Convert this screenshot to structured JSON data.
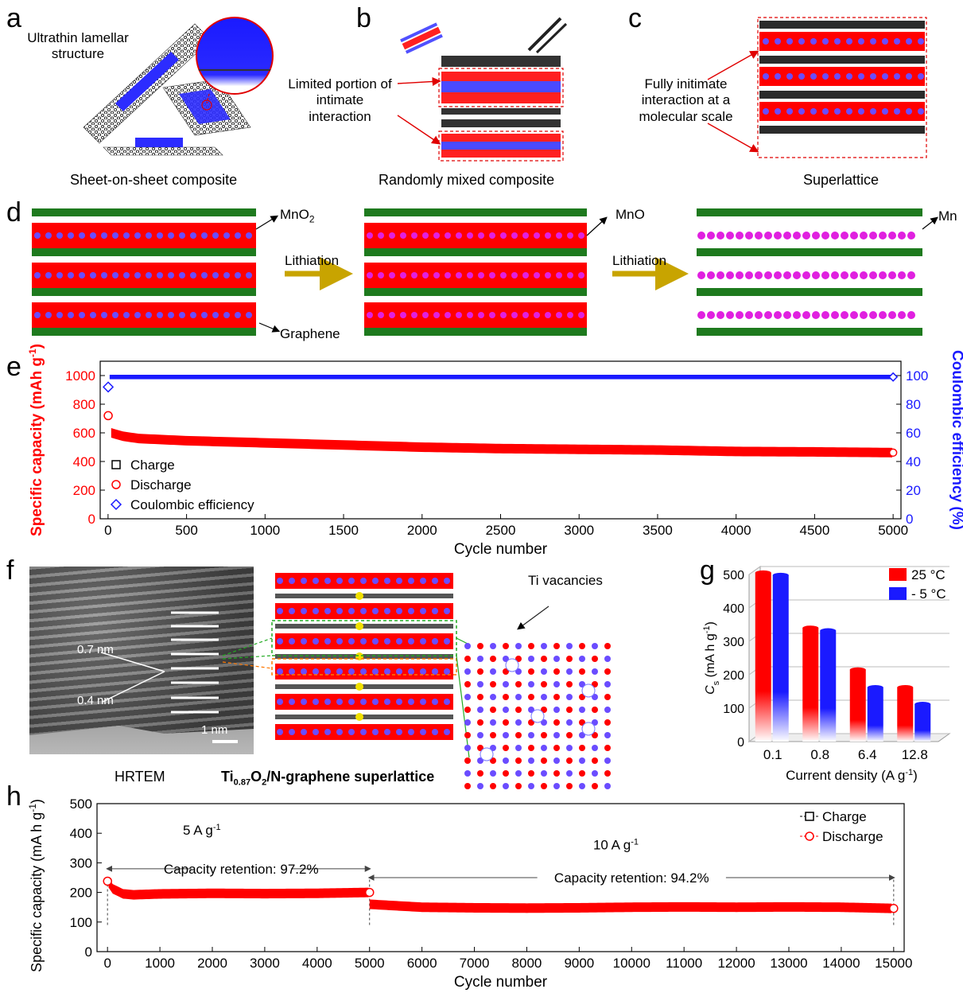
{
  "panels": {
    "a": {
      "letter": "a",
      "label": "Ultrathin lamellar structure",
      "caption": "Sheet-on-sheet composite"
    },
    "b": {
      "letter": "b",
      "label": "Limited portion of intimate interaction",
      "caption": "Randomly mixed composite"
    },
    "c": {
      "letter": "c",
      "label": "Fully initimate interaction at a molecular scale",
      "caption": "Superlattice"
    },
    "d": {
      "letter": "d",
      "mno2": "MnO",
      "mno2_sub": "2",
      "mno": "MnO",
      "mn": "Mn",
      "graphene": "Graphene",
      "arrow1": "Lithiation",
      "arrow2": "Lithiation"
    },
    "e": {
      "letter": "e"
    },
    "f": {
      "letter": "f",
      "d1": "0.7 nm",
      "d2": "0.4 nm",
      "scale": "1 nm",
      "vacancies": "Ti vacancies",
      "caption_left": "HRTEM",
      "caption_right_pre": "Ti",
      "caption_right_sub": "0.87",
      "caption_right_mid": "O",
      "caption_right_sub2": "2",
      "caption_right_post": "/N-graphene superlattice"
    },
    "g": {
      "letter": "g"
    },
    "h": {
      "letter": "h"
    }
  },
  "colors": {
    "red": "#ff0000",
    "blue": "#1a1aff",
    "green": "#1e7a1e",
    "magenta": "#e020e0",
    "purple": "#6a4cff",
    "olive": "#c8a400",
    "graphite": "#333333"
  },
  "chart_data": [
    {
      "id": "e",
      "type": "scatter",
      "xlabel": "Cycle number",
      "ylabel_left": "Specific capacity (mAh g",
      "ylabel_left_sup": "-1",
      "ylabel_left_post": ")",
      "ylabel_right": "Coulombic efficiency (%)",
      "xlim": [
        -50,
        5050
      ],
      "ylim_left": [
        0,
        1100
      ],
      "ylim_right": [
        0,
        110
      ],
      "xticks": [
        0,
        500,
        1000,
        1500,
        2000,
        2500,
        3000,
        3500,
        4000,
        4500,
        5000
      ],
      "yticks_left": [
        0,
        200,
        400,
        600,
        800,
        1000
      ],
      "yticks_right": [
        0,
        20,
        40,
        60,
        80,
        100
      ],
      "legend_position": "bottom-left",
      "legend": [
        {
          "label": "Charge",
          "marker": "square",
          "color": "#000000"
        },
        {
          "label": "Discharge",
          "marker": "circle",
          "color": "#ff0000"
        },
        {
          "label": "Coulombic efficiency",
          "marker": "diamond",
          "color": "#1a1aff"
        }
      ],
      "series": [
        {
          "name": "Charge",
          "axis": "left",
          "x": [
            1,
            5000
          ],
          "y": [
            595,
            462
          ]
        },
        {
          "name": "Discharge",
          "axis": "left",
          "x": [
            1,
            20,
            50,
            100,
            200,
            500,
            1000,
            1500,
            2000,
            2500,
            3000,
            3500,
            4000,
            4500,
            5000
          ],
          "y": [
            720,
            600,
            590,
            575,
            560,
            545,
            530,
            515,
            500,
            490,
            485,
            480,
            470,
            467,
            462
          ]
        },
        {
          "name": "Coulombic efficiency",
          "axis": "right",
          "x": [
            1,
            10,
            500,
            1000,
            2000,
            3000,
            4000,
            5000
          ],
          "y": [
            92,
            98,
            99,
            99,
            99,
            99,
            99,
            99
          ]
        }
      ]
    },
    {
      "id": "g",
      "type": "bar",
      "xlabel": "Current density (A g",
      "xlabel_sup": "-1",
      "xlabel_post": ")",
      "ylabel_pre": "C",
      "ylabel_sub": "s",
      "ylabel_mid": " (mA h g",
      "ylabel_sup": "-1",
      "ylabel_post": ")",
      "categories": [
        "0.1",
        "0.8",
        "6.4",
        "12.8"
      ],
      "ylim": [
        0,
        500
      ],
      "yticks": [
        0,
        100,
        200,
        300,
        400,
        500
      ],
      "legend_position": "top-right",
      "series": [
        {
          "name": "25 °C",
          "color": "#ff0000",
          "values": [
            505,
            340,
            215,
            162
          ]
        },
        {
          "name": "- 5 °C",
          "color": "#1a1aff",
          "values": [
            498,
            332,
            162,
            112
          ]
        }
      ]
    },
    {
      "id": "h",
      "type": "scatter",
      "xlabel": "Cycle number",
      "ylabel": "Specific capacity (mA h g",
      "ylabel_sup": "-1",
      "ylabel_post": ")",
      "xlim": [
        -200,
        15200
      ],
      "ylim": [
        0,
        500
      ],
      "xticks": [
        0,
        1000,
        2000,
        3000,
        4000,
        5000,
        6000,
        7000,
        8000,
        9000,
        10000,
        11000,
        12000,
        13000,
        14000,
        15000
      ],
      "yticks": [
        0,
        100,
        200,
        300,
        400,
        500
      ],
      "legend_position": "top-right",
      "legend": [
        {
          "label": "Charge",
          "marker": "square",
          "color": "#000000"
        },
        {
          "label": "Discharge",
          "marker": "circle",
          "color": "#ff0000"
        }
      ],
      "annotations": [
        {
          "text": "5 A g",
          "sup": "-1"
        },
        {
          "text": "10 A g",
          "sup": "-1"
        },
        {
          "text": "Capacity retention: 97.2%"
        },
        {
          "text": "Capacity retention: 94.2%"
        }
      ],
      "series": [
        {
          "name": "Discharge",
          "x": [
            1,
            100,
            300,
            500,
            1000,
            2000,
            3000,
            4000,
            4999,
            5001,
            6000,
            7000,
            8000,
            9000,
            10000,
            11000,
            12000,
            13000,
            14000,
            15000
          ],
          "y": [
            238,
            212,
            195,
            192,
            195,
            197,
            196,
            197,
            200,
            160,
            150,
            148,
            147,
            148,
            150,
            151,
            150,
            151,
            150,
            146
          ]
        },
        {
          "name": "Charge",
          "x": [
            1,
            4999,
            5001,
            15000
          ],
          "y": [
            210,
            198,
            158,
            146
          ]
        }
      ]
    }
  ]
}
